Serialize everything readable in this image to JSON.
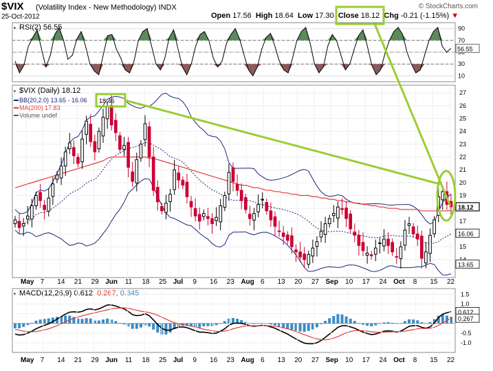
{
  "header": {
    "ticker": "$VIX",
    "description": "(Volatility Index - New Methodology)",
    "exchange": "INDX",
    "date": "25-Oct-2012",
    "credit": "© StockCharts.com",
    "open_label": "Open",
    "open_value": "17.56",
    "high_label": "High",
    "high_value": "18.64",
    "low_label": "Low",
    "low_value": "17.30",
    "close_label": "Close",
    "close_value": "18.12",
    "chg_label": "Chg",
    "chg_value": "-0.21 (-1.15%)",
    "chg_arrow": "▼"
  },
  "colors": {
    "up": "#000000",
    "down": "#cc0033",
    "bb": "#1a237e",
    "ma": "#e53935",
    "annotation": "#9acd32",
    "rsi_high": "#5b8a5b",
    "rsi_low": "#8b5a5a",
    "macd_hist": "#3b8bc4"
  },
  "chart_data": [
    {
      "type": "line",
      "panel": "rsi",
      "title": "RSI(2) 56.55",
      "last_value_label": "56.55",
      "y_ticks": [
        90,
        70,
        50,
        30,
        10
      ],
      "ylim": [
        0,
        100
      ],
      "thresholds": [
        70,
        30
      ],
      "values": [
        35,
        15,
        28,
        60,
        75,
        88,
        55,
        25,
        45,
        80,
        92,
        70,
        38,
        45,
        72,
        85,
        60,
        30,
        18,
        12,
        45,
        78,
        80,
        55,
        40,
        20,
        15,
        35,
        70,
        85,
        90,
        60,
        30,
        20,
        40,
        75,
        88,
        55,
        25,
        12,
        30,
        60,
        80,
        85,
        70,
        40,
        25,
        35,
        65,
        80,
        90,
        72,
        45,
        20,
        10,
        25,
        55,
        75,
        82,
        60,
        35,
        20,
        15,
        40,
        70,
        85,
        92,
        65,
        30,
        15,
        25,
        60,
        80,
        70,
        45,
        20,
        30,
        55,
        78,
        88,
        60,
        28,
        12,
        20,
        48,
        70,
        85,
        92,
        80,
        50,
        30,
        15,
        20,
        45,
        70,
        85,
        92,
        60,
        50,
        56.55
      ]
    },
    {
      "type": "candlestick",
      "panel": "price",
      "title": "$VIX (Daily) 18.12",
      "legend": [
        {
          "label": "BB(20,2.0) 13.65 - 16.06",
          "color": "#1a237e"
        },
        {
          "label": "MA(200) 17.83",
          "color": "#e53935"
        },
        {
          "label": "Volume undef",
          "color": "#555555"
        }
      ],
      "y_ticks": [
        27,
        26,
        25,
        24,
        23,
        22,
        21,
        20,
        19,
        18,
        17,
        16,
        15,
        14
      ],
      "ylim": [
        12.6,
        27.6
      ],
      "price_tags": [
        {
          "label": "18.12",
          "value": 18.12,
          "style": "dark"
        },
        {
          "label": "16.06",
          "value": 16.06,
          "style": "light"
        },
        {
          "label": "13.65",
          "value": 13.65,
          "style": "light"
        }
      ],
      "x_labels": [
        "May",
        "7",
        "14",
        "21",
        "29",
        "Jun",
        "11",
        "18",
        "25",
        "Jul",
        "9",
        "16",
        "23",
        "Aug",
        "6",
        "13",
        "20",
        "27",
        "Sep",
        "10",
        "17",
        "24",
        "Oct",
        "8",
        "15",
        "22"
      ],
      "close": [
        17.1,
        16.5,
        16.8,
        17.4,
        18.2,
        19.0,
        18.6,
        17.9,
        18.8,
        19.9,
        20.6,
        21.3,
        22.4,
        23.1,
        22.1,
        21.5,
        23.4,
        24.8,
        23.2,
        22.4,
        24.0,
        25.1,
        25.9,
        24.5,
        23.9,
        22.6,
        22.9,
        21.2,
        20.1,
        21.8,
        23.0,
        24.6,
        22.0,
        19.4,
        18.5,
        17.8,
        18.4,
        19.1,
        21.0,
        20.2,
        19.8,
        18.9,
        18.1,
        17.4,
        17.0,
        17.6,
        17.2,
        16.8,
        17.3,
        18.2,
        19.0,
        20.8,
        20.1,
        19.4,
        18.6,
        17.9,
        17.2,
        17.6,
        18.3,
        18.7,
        17.8,
        17.1,
        16.6,
        16.2,
        15.8,
        15.5,
        15.0,
        14.6,
        14.2,
        14.0,
        14.4,
        14.9,
        15.4,
        16.2,
        16.8,
        17.2,
        17.6,
        18.1,
        17.9,
        17.2,
        16.4,
        15.9,
        15.1,
        14.7,
        14.5,
        14.3,
        14.9,
        15.3,
        15.6,
        15.1,
        14.6,
        14.2,
        15.0,
        16.3,
        16.8,
        16.0,
        15.6,
        14.1,
        14.6,
        15.9,
        17.1,
        18.9,
        19.3,
        18.3,
        18.12
      ],
      "ma200": [
        19.6,
        19.7,
        19.8,
        19.9,
        20.0,
        20.1,
        20.2,
        20.3,
        20.4,
        20.5,
        20.6,
        20.7,
        20.8,
        20.9,
        21.0,
        21.1,
        21.2,
        21.3,
        21.4,
        21.5,
        21.6,
        21.7,
        21.9,
        22.0,
        22.0,
        22.0,
        22.0,
        22.0,
        22.0,
        22.0,
        22.0,
        22.0,
        21.9,
        21.9,
        21.8,
        21.7,
        21.6,
        21.5,
        21.4,
        21.3,
        21.2,
        21.1,
        21.0,
        20.9,
        20.8,
        20.7,
        20.6,
        20.5,
        20.4,
        20.3,
        20.2,
        20.1,
        20.0,
        19.9,
        19.8,
        19.8,
        19.7,
        19.6,
        19.6,
        19.5,
        19.4,
        19.4,
        19.3,
        19.3,
        19.2,
        19.2,
        19.1,
        19.1,
        19.0,
        19.0,
        19.0,
        18.9,
        18.9,
        18.8,
        18.8,
        18.7,
        18.7,
        18.6,
        18.6,
        18.5,
        18.5,
        18.4,
        18.4,
        18.3,
        18.3,
        18.2,
        18.2,
        18.1,
        18.1,
        18.0,
        18.0,
        18.0,
        17.9,
        17.9,
        17.9,
        17.9,
        17.9,
        17.8,
        17.8,
        17.8,
        17.8,
        17.8,
        17.8,
        17.8,
        17.83
      ]
    },
    {
      "type": "line",
      "panel": "macd",
      "title": "MACD(12,26,9)",
      "values_label": [
        "0.612",
        "0.267",
        "0.345"
      ],
      "y_ticks": [
        1.5,
        1.0,
        0.5,
        0,
        -0.5,
        -1.0
      ],
      "y_tick_labels": [
        "1.5",
        "1.0",
        "0.5",
        "",
        "-0.5",
        "-1.0"
      ],
      "ylim": [
        -1.5,
        1.8
      ],
      "price_tags": [
        {
          "label": "0.612",
          "value": 0.612
        },
        {
          "label": "0.267",
          "value": 0.267
        }
      ],
      "x_labels": [
        "May",
        "7",
        "14",
        "21",
        "29",
        "Jun",
        "11",
        "18",
        "25",
        "Jul",
        "9",
        "16",
        "23",
        "Aug",
        "6",
        "13",
        "20",
        "27",
        "Sep",
        "10",
        "17",
        "24",
        "Oct",
        "8",
        "15",
        "22"
      ],
      "series": [
        {
          "name": "MACD(12,26,9)",
          "color": "#000000",
          "values": [
            -0.55,
            -0.6,
            -0.58,
            -0.5,
            -0.4,
            -0.28,
            -0.18,
            -0.1,
            -0.02,
            0.1,
            0.22,
            0.35,
            0.48,
            0.58,
            0.6,
            0.58,
            0.62,
            0.72,
            0.75,
            0.7,
            0.75,
            0.85,
            0.95,
            0.95,
            0.9,
            0.82,
            0.75,
            0.62,
            0.45,
            0.4,
            0.42,
            0.5,
            0.4,
            0.18,
            -0.05,
            -0.25,
            -0.35,
            -0.35,
            -0.25,
            -0.2,
            -0.18,
            -0.22,
            -0.3,
            -0.38,
            -0.45,
            -0.45,
            -0.48,
            -0.52,
            -0.5,
            -0.4,
            -0.28,
            -0.1,
            0.0,
            0.02,
            0.0,
            -0.05,
            -0.12,
            -0.15,
            -0.12,
            -0.1,
            -0.12,
            -0.18,
            -0.25,
            -0.35,
            -0.45,
            -0.55,
            -0.68,
            -0.8,
            -0.92,
            -1.02,
            -1.05,
            -1.05,
            -1.0,
            -0.88,
            -0.72,
            -0.55,
            -0.38,
            -0.2,
            -0.12,
            -0.12,
            -0.18,
            -0.25,
            -0.35,
            -0.45,
            -0.52,
            -0.58,
            -0.55,
            -0.48,
            -0.4,
            -0.38,
            -0.4,
            -0.45,
            -0.4,
            -0.28,
            -0.15,
            -0.12,
            -0.12,
            -0.2,
            -0.25,
            -0.18,
            0.02,
            0.3,
            0.48,
            0.55,
            0.612
          ]
        },
        {
          "name": "",
          "color": "#e53935",
          "values": [
            -0.3,
            -0.35,
            -0.4,
            -0.42,
            -0.43,
            -0.42,
            -0.38,
            -0.33,
            -0.28,
            -0.2,
            -0.12,
            -0.02,
            0.08,
            0.18,
            0.27,
            0.33,
            0.39,
            0.45,
            0.5,
            0.55,
            0.6,
            0.65,
            0.7,
            0.75,
            0.78,
            0.8,
            0.8,
            0.78,
            0.73,
            0.68,
            0.63,
            0.6,
            0.56,
            0.5,
            0.42,
            0.32,
            0.22,
            0.12,
            0.04,
            -0.02,
            -0.06,
            -0.1,
            -0.14,
            -0.18,
            -0.24,
            -0.3,
            -0.34,
            -0.38,
            -0.41,
            -0.42,
            -0.4,
            -0.35,
            -0.28,
            -0.22,
            -0.17,
            -0.13,
            -0.12,
            -0.12,
            -0.12,
            -0.12,
            -0.12,
            -0.13,
            -0.15,
            -0.18,
            -0.23,
            -0.28,
            -0.35,
            -0.42,
            -0.5,
            -0.58,
            -0.66,
            -0.74,
            -0.8,
            -0.84,
            -0.85,
            -0.82,
            -0.76,
            -0.68,
            -0.58,
            -0.48,
            -0.42,
            -0.38,
            -0.37,
            -0.38,
            -0.4,
            -0.43,
            -0.45,
            -0.46,
            -0.45,
            -0.44,
            -0.43,
            -0.43,
            -0.42,
            -0.4,
            -0.36,
            -0.32,
            -0.28,
            -0.26,
            -0.26,
            -0.25,
            -0.2,
            -0.1,
            0.02,
            0.15,
            0.267
          ]
        }
      ]
    }
  ]
}
